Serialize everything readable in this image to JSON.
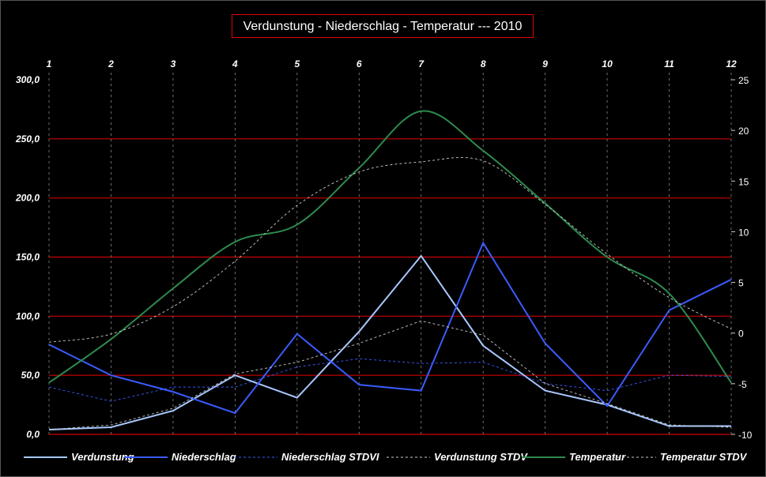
{
  "chart_data": {
    "type": "line",
    "title": "Verdunstung - Niederschlag - Temperatur --- 2010",
    "categories": [
      "1",
      "2",
      "3",
      "4",
      "5",
      "6",
      "7",
      "8",
      "9",
      "10",
      "11",
      "12"
    ],
    "y_left": {
      "ylim": [
        0,
        300
      ],
      "ticks": [
        "0,0",
        "50,0",
        "100,0",
        "150,0",
        "200,0",
        "250,0",
        "300,0"
      ]
    },
    "y_right": {
      "ylim": [
        -10,
        25
      ],
      "ticks": [
        "-10",
        "-5",
        "0",
        "5",
        "10",
        "15",
        "20",
        "25"
      ]
    },
    "grid": true,
    "legend_position": "bottom",
    "series": [
      {
        "name": "Verdunstung",
        "axis": "left",
        "color": "#a8c8ff",
        "dash": "solid",
        "values": [
          4,
          6,
          20,
          50,
          31,
          87,
          151,
          75,
          37,
          25,
          7,
          7
        ]
      },
      {
        "name": "Niederschlag",
        "axis": "left",
        "color": "#3a5cff",
        "dash": "solid",
        "values": [
          76,
          50,
          36,
          18,
          85,
          42,
          37,
          162,
          77,
          24,
          105,
          131
        ]
      },
      {
        "name": "Niederschlag STDVI",
        "axis": "left",
        "color": "#3a5cff",
        "dash": "dashed",
        "values": [
          40,
          28,
          40,
          40,
          57,
          64,
          60,
          61,
          43,
          37,
          50,
          49
        ]
      },
      {
        "name": "Verdunstung STDV",
        "axis": "left",
        "color": "#cccccc",
        "dash": "dashed",
        "values": [
          4,
          8,
          22,
          51,
          61,
          77,
          96,
          84,
          43,
          26,
          8,
          6
        ]
      },
      {
        "name": "Temperatur",
        "axis": "right",
        "color": "#2e8b4e",
        "dash": "solid",
        "values": [
          -4.9,
          -0.6,
          4.4,
          9.0,
          10.7,
          16.3,
          21.9,
          18.0,
          12.8,
          7.5,
          3.9,
          -4.9
        ]
      },
      {
        "name": "Temperatur STDV",
        "axis": "right",
        "color": "#cccccc",
        "dash": "dashed",
        "values": [
          -0.9,
          -0.1,
          2.6,
          7.1,
          12.6,
          15.9,
          16.9,
          17.0,
          12.7,
          7.8,
          3.5,
          0.4
        ]
      }
    ]
  }
}
